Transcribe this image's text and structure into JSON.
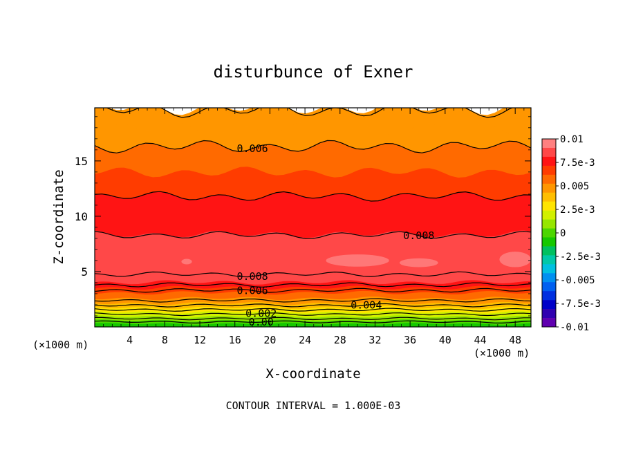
{
  "chart_data": {
    "type": "heatmap",
    "title": "disturbunce of Exner",
    "xlabel": "X-coordinate",
    "ylabel": "Z-coordinate",
    "x_unit_left": "(×1000 m)",
    "x_unit_right": "(×1000 m)",
    "footer": "CONTOUR INTERVAL = 1.000E-03",
    "xlim": [
      0,
      49.8
    ],
    "ylim": [
      0,
      19.8
    ],
    "x_ticks": [
      4,
      8,
      12,
      16,
      20,
      24,
      28,
      32,
      36,
      40,
      44,
      48
    ],
    "x_tick_labels": [
      "4",
      "8",
      "12",
      "16",
      "20",
      "24",
      "28",
      "32",
      "36",
      "40",
      "44",
      "48"
    ],
    "y_ticks": [
      5,
      10,
      15
    ],
    "y_tick_labels": [
      "5",
      "10",
      "15"
    ],
    "colorbar": {
      "range": [
        -0.01,
        0.01
      ],
      "labels": [
        "0.01",
        "7.5e-3",
        "0.005",
        "2.5e-3",
        "0",
        "-2.5e-3",
        "-0.005",
        "-7.5e-3",
        "-0.01"
      ],
      "colors_top_to_bottom": [
        "#ff8080",
        "#ff4848",
        "#ff1414",
        "#ff3c00",
        "#ff6a00",
        "#ff9600",
        "#ffbe00",
        "#ffe400",
        "#d2f000",
        "#96e600",
        "#4cd600",
        "#16c800",
        "#00c060",
        "#00c8a8",
        "#00c0e0",
        "#0090f0",
        "#0060f0",
        "#0030e0",
        "#0000c8",
        "#3000b0",
        "#6000b0"
      ]
    },
    "bands_bottom_to_top": [
      {
        "z_top": 0.3,
        "color": "#16c800"
      },
      {
        "z_top": 0.6,
        "color": "#4cd600"
      },
      {
        "z_top": 0.95,
        "color": "#96e600"
      },
      {
        "z_top": 1.35,
        "color": "#d2f000"
      },
      {
        "z_top": 1.75,
        "color": "#ffe400"
      },
      {
        "z_top": 2.15,
        "color": "#ffbe00"
      },
      {
        "z_top": 2.6,
        "color": "#ff9600"
      },
      {
        "z_top": 3.1,
        "color": "#ff6a00"
      },
      {
        "z_top": 3.55,
        "color": "#ff3c00"
      },
      {
        "z_top": 4.05,
        "color": "#ff1414"
      },
      {
        "z_top": 4.6,
        "color": "#ff4848"
      },
      {
        "z_top": 8.4,
        "color": "#ff4848"
      },
      {
        "z_top": 11.8,
        "color": "#ff1414"
      },
      {
        "z_top": 14.0,
        "color": "#ff3c00"
      },
      {
        "z_top": 16.3,
        "color": "#ff6a00"
      },
      {
        "z_top": 17.9,
        "color": "#ff9600"
      },
      {
        "z_top": 19.8,
        "color": "#ff9600"
      }
    ],
    "contours": [
      {
        "level": 0.0,
        "z": 0.45,
        "label": "0.00",
        "label_x": 19.0
      },
      {
        "level": 0.001,
        "z": 0.75
      },
      {
        "level": 0.002,
        "z": 1.15,
        "label": "0.002",
        "label_x": 19.0
      },
      {
        "level": 0.003,
        "z": 1.55
      },
      {
        "level": 0.004,
        "z": 1.95,
        "label": "0.004",
        "label_x": 31.0
      },
      {
        "level": 0.005,
        "z": 2.4
      },
      {
        "level": 0.006,
        "z": 3.3,
        "label": "0.006",
        "label_x": 18.0
      },
      {
        "level": 0.007,
        "z": 3.8
      },
      {
        "level": 0.008,
        "z": 4.75,
        "label": "0.008",
        "label_x": 18.0
      },
      {
        "level": 0.008,
        "z": 8.3,
        "label": "0.008",
        "label_x": 37.0
      },
      {
        "level": 0.007,
        "z": 11.8
      },
      {
        "level": 0.006,
        "z": 16.3,
        "label": "0.006",
        "label_x": 18.0
      },
      {
        "level": 0.005,
        "z": 19.6
      }
    ]
  }
}
